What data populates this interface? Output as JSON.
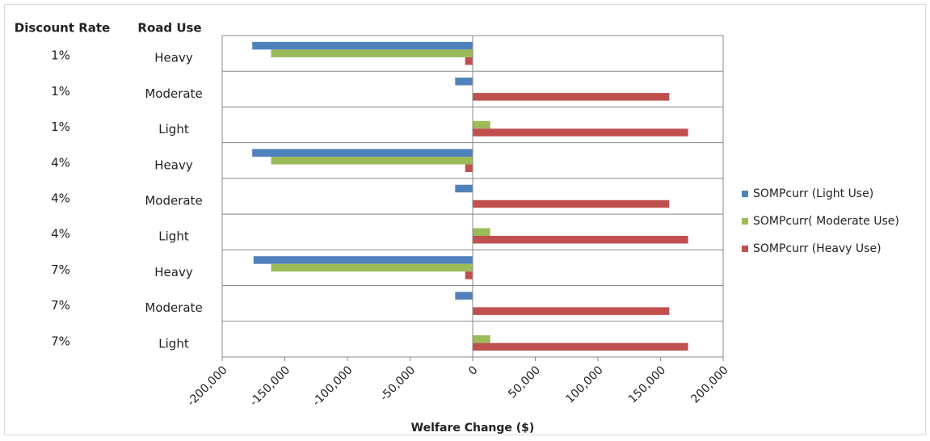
{
  "chart_data": {
    "type": "bar",
    "orientation": "horizontal",
    "category_columns": [
      {
        "header": "Discount Rate",
        "labels": [
          "1%",
          "1%",
          "1%",
          "4%",
          "4%",
          "4%",
          "7%",
          "7%",
          "7%"
        ]
      },
      {
        "header": "Road Use",
        "labels": [
          "Heavy",
          "Moderate",
          "Light",
          "Heavy",
          "Moderate",
          "Light",
          "Heavy",
          "Moderate",
          "Light"
        ]
      }
    ],
    "series": [
      {
        "name": "SOMPcurr (Light Use)",
        "color": "#4f81bd",
        "values": [
          -176000,
          -14000,
          0,
          -176000,
          -14000,
          0,
          -175000,
          -14000,
          0
        ]
      },
      {
        "name": "SOMPcurr( Moderate Use)",
        "color": "#9bbb59",
        "values": [
          -161000,
          0,
          14000,
          -161000,
          0,
          14000,
          -161000,
          0,
          14000
        ]
      },
      {
        "name": "SOMPcurr (Heavy Use)",
        "color": "#c0504d",
        "values": [
          -6000,
          157000,
          172000,
          -6000,
          157000,
          172000,
          -6000,
          157000,
          172000
        ]
      }
    ],
    "xlabel": "Welfare Change ($)",
    "xlim": [
      -200000,
      200000
    ],
    "xticks": [
      {
        "value": -200000,
        "label": "-200,000"
      },
      {
        "value": -150000,
        "label": "-150,000"
      },
      {
        "value": -100000,
        "label": "-100,000"
      },
      {
        "value": -50000,
        "label": "-50,000"
      },
      0,
      {
        "value": 50000,
        "label": "50,000"
      },
      {
        "value": 100000,
        "label": "100,000"
      },
      {
        "value": 150000,
        "label": "150,000"
      },
      {
        "value": 200000,
        "label": "200,000"
      }
    ],
    "legend": "right"
  }
}
